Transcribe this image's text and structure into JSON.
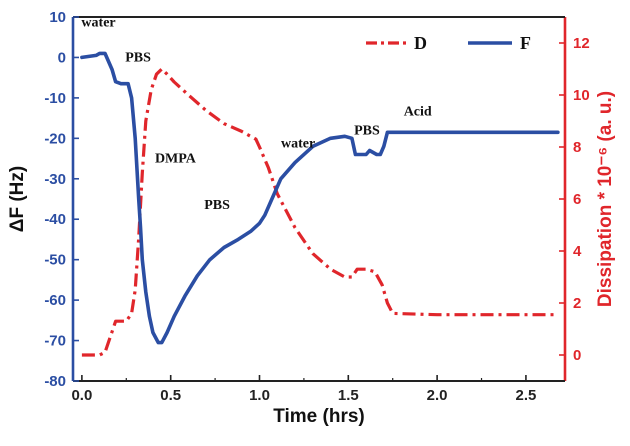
{
  "chart_data": {
    "type": "line",
    "xlabel": "Time (hrs)",
    "ylabel_left": "ΔF (Hz)",
    "ylabel_right": "Dissipation * 10⁻⁶ (a. u.)",
    "xlim": [
      -0.05,
      2.72
    ],
    "ylim_left": [
      -80,
      10
    ],
    "ylim_right": [
      -1,
      13
    ],
    "x_ticks": [
      "0.0",
      "0.5",
      "1.0",
      "1.5",
      "2.0",
      "2.5"
    ],
    "x_tick_values": [
      0,
      0.5,
      1.0,
      1.5,
      2.0,
      2.5
    ],
    "y_left_ticks": [
      "10",
      "0",
      "-10",
      "-20",
      "-30",
      "-40",
      "-50",
      "-60",
      "-70",
      "-80"
    ],
    "y_left_tick_values": [
      10,
      0,
      -10,
      -20,
      -30,
      -40,
      -50,
      -60,
      -70,
      -80
    ],
    "y_right_ticks": [
      "0",
      "2",
      "4",
      "6",
      "8",
      "10",
      "12"
    ],
    "y_right_tick_values": [
      0,
      2,
      4,
      6,
      8,
      10,
      12
    ],
    "colors": {
      "F": "#2b4ea3",
      "D": "#e0262b",
      "text": "#111111"
    },
    "legend": [
      {
        "label": "D",
        "series": "D",
        "style": "dash-dot"
      },
      {
        "label": "F",
        "series": "F",
        "style": "solid"
      }
    ],
    "series": [
      {
        "name": "F",
        "axis": "left",
        "x": [
          0.0,
          0.08,
          0.1,
          0.13,
          0.17,
          0.19,
          0.22,
          0.26,
          0.28,
          0.3,
          0.32,
          0.33,
          0.34,
          0.36,
          0.38,
          0.4,
          0.43,
          0.45,
          0.48,
          0.52,
          0.58,
          0.65,
          0.72,
          0.8,
          0.88,
          0.95,
          1.0,
          1.03,
          1.07,
          1.12,
          1.2,
          1.3,
          1.4,
          1.48,
          1.52,
          1.54,
          1.6,
          1.62,
          1.66,
          1.68,
          1.7,
          1.72,
          1.75,
          2.0,
          2.2,
          2.4,
          2.6,
          2.68
        ],
        "values": [
          0,
          0.5,
          1,
          1,
          -3,
          -6,
          -6.5,
          -6.5,
          -10,
          -20,
          -35,
          -42,
          -50,
          -58,
          -64,
          -68,
          -70.5,
          -70.5,
          -68,
          -64,
          -59,
          -54,
          -50,
          -47,
          -45,
          -43,
          -41,
          -39,
          -35,
          -30,
          -26,
          -22,
          -20,
          -19.5,
          -20,
          -24,
          -24,
          -23,
          -24,
          -24,
          -22,
          -18.5,
          -18.5,
          -18.5,
          -18.5,
          -18.5,
          -18.5,
          -18.5
        ]
      },
      {
        "name": "D",
        "axis": "right",
        "x": [
          0.0,
          0.1,
          0.13,
          0.17,
          0.19,
          0.25,
          0.28,
          0.3,
          0.32,
          0.34,
          0.36,
          0.39,
          0.42,
          0.45,
          0.48,
          0.52,
          0.6,
          0.7,
          0.8,
          0.9,
          0.98,
          1.0,
          1.05,
          1.1,
          1.2,
          1.3,
          1.4,
          1.48,
          1.52,
          1.55,
          1.6,
          1.65,
          1.69,
          1.72,
          1.75,
          2.0,
          2.2,
          2.4,
          2.6,
          2.68
        ],
        "values": [
          0,
          0,
          0.1,
          0.9,
          1.3,
          1.3,
          1.6,
          2.5,
          4.5,
          7,
          9,
          10.2,
          10.8,
          11,
          10.8,
          10.5,
          10,
          9.4,
          8.9,
          8.6,
          8.3,
          8,
          7.2,
          6.2,
          4.9,
          3.9,
          3.3,
          3.0,
          3.0,
          3.3,
          3.3,
          3.2,
          2.7,
          2.0,
          1.6,
          1.55,
          1.55,
          1.55,
          1.55,
          1.55
        ]
      }
    ],
    "annotations": [
      {
        "text": "water",
        "x": 0.02,
        "y": 1
      },
      {
        "text": "PBS",
        "x": 0.12,
        "y": -3
      },
      {
        "text": "DMPA",
        "x": 0.31,
        "y": -25
      },
      {
        "text": "PBS",
        "x": 0.7,
        "y": -40
      },
      {
        "text": "water",
        "x": 1.2,
        "y": -26
      },
      {
        "text": "PBS",
        "x": 1.6,
        "y": -24
      },
      {
        "text": "Acid",
        "x": 1.84,
        "y": -18.5
      }
    ]
  }
}
